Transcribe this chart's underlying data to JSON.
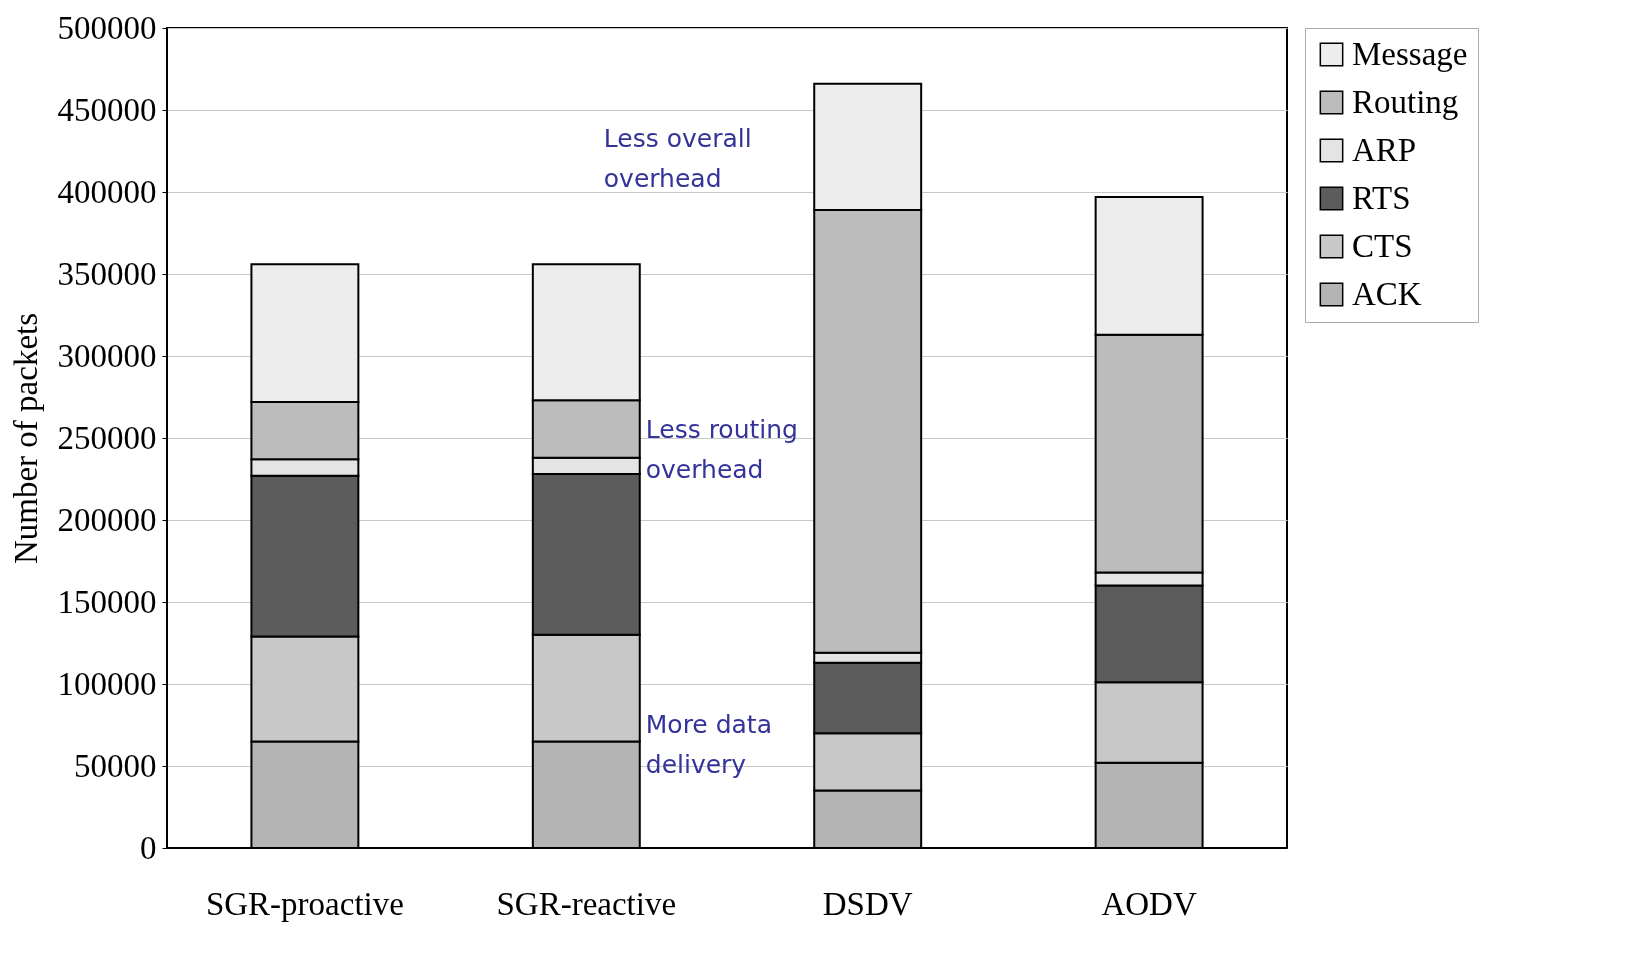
{
  "chart_data": {
    "type": "bar",
    "stacked": true,
    "ylabel": "Number of packets",
    "categories": [
      "SGR-proactive",
      "SGR-reactive",
      "DSDV",
      "AODV"
    ],
    "series": [
      {
        "name": "ACK",
        "color": "#b4b4b4",
        "values": [
          65000,
          65000,
          35000,
          52000
        ]
      },
      {
        "name": "CTS",
        "color": "#c8c8c8",
        "values": [
          64000,
          65000,
          35000,
          49000
        ]
      },
      {
        "name": "RTS",
        "color": "#5c5c5c",
        "values": [
          98000,
          98000,
          43000,
          59000
        ]
      },
      {
        "name": "ARP",
        "color": "#e4e4e4",
        "values": [
          10000,
          10000,
          6000,
          8000
        ]
      },
      {
        "name": "Routing",
        "color": "#bcbcbc",
        "values": [
          35000,
          35000,
          270000,
          145000
        ]
      },
      {
        "name": "Message",
        "color": "#ededed",
        "values": [
          84000,
          83000,
          77000,
          84000
        ]
      }
    ],
    "ylim": [
      0,
      500000
    ],
    "yticks": [
      0,
      50000,
      100000,
      150000,
      200000,
      250000,
      300000,
      350000,
      400000,
      450000,
      500000
    ],
    "grid": "y",
    "legend": "right",
    "annotations": [
      "Less overall\noverhead",
      "Less routing\noverhead",
      "More data\ndelivery"
    ]
  }
}
